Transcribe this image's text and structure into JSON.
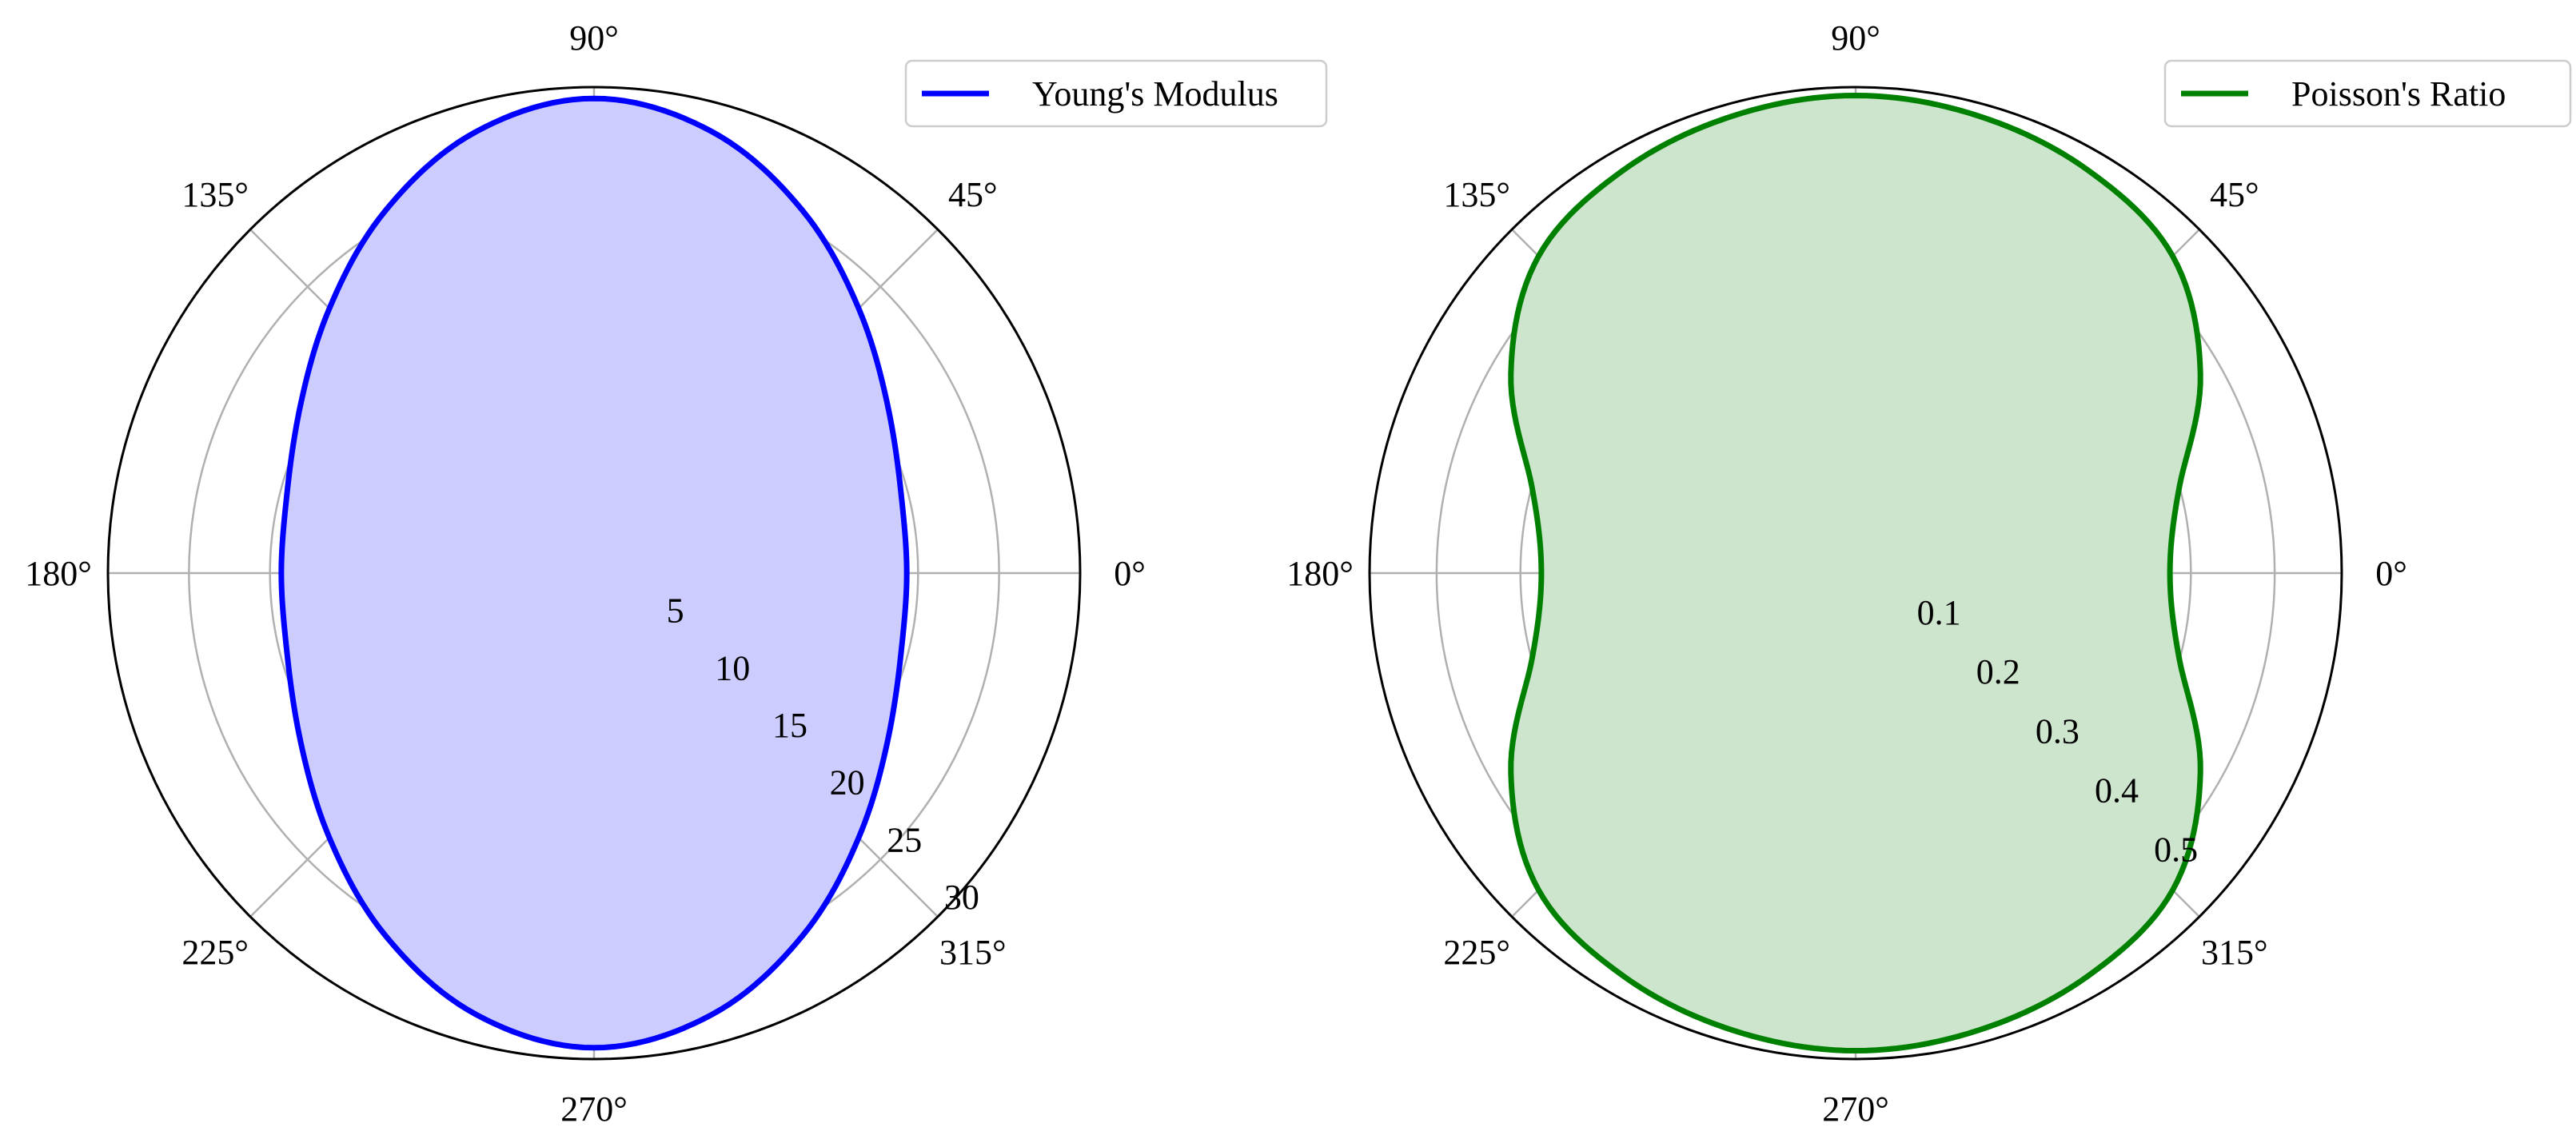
{
  "chart_data": [
    {
      "type": "polar-area",
      "angle_unit": "degrees",
      "angle_ticks": [
        "0°",
        "45°",
        "90°",
        "135°",
        "180°",
        "225°",
        "270°",
        "315°"
      ],
      "r_ticks": [
        "5",
        "10",
        "15",
        "20",
        "25",
        "30"
      ],
      "r_tick_values": [
        5,
        10,
        15,
        20,
        25,
        30
      ],
      "rlim": [
        0,
        30
      ],
      "grid": true,
      "legend_position": "top-right",
      "series": [
        {
          "name": "Young's Modulus",
          "color": "#0000ff",
          "fill_color": "#ccccff",
          "theta_deg": [
            0,
            15,
            30,
            45,
            60,
            75,
            90,
            105,
            120,
            135,
            150,
            165,
            180,
            195,
            210,
            225,
            240,
            255,
            270,
            285,
            300,
            315,
            330,
            345,
            360
          ],
          "r": [
            19.3,
            19.6,
            20.9,
            23.1,
            25.8,
            28.2,
            29.3,
            28.2,
            25.8,
            23.1,
            20.9,
            19.6,
            19.3,
            19.6,
            20.9,
            23.1,
            25.8,
            28.2,
            29.3,
            28.2,
            25.8,
            23.1,
            20.9,
            19.6,
            19.3
          ]
        }
      ]
    },
    {
      "type": "polar-area",
      "angle_unit": "degrees",
      "angle_ticks": [
        "0°",
        "45°",
        "90°",
        "135°",
        "180°",
        "225°",
        "270°",
        "315°"
      ],
      "r_ticks": [
        "0.1",
        "0.2",
        "0.3",
        "0.4",
        "0.5"
      ],
      "r_tick_values": [
        0.1,
        0.2,
        0.3,
        0.4,
        0.5
      ],
      "rlim": [
        0,
        0.58
      ],
      "grid": true,
      "legend_position": "top-right",
      "series": [
        {
          "name": "Poisson's Ratio",
          "color": "#008000",
          "fill_color": "#cce5cc",
          "theta_deg": [
            0,
            15,
            30,
            45,
            60,
            75,
            90,
            105,
            120,
            135,
            150,
            165,
            180,
            195,
            210,
            225,
            240,
            255,
            270,
            285,
            300,
            315,
            330,
            345,
            360
          ],
          "r": [
            0.375,
            0.4,
            0.475,
            0.535,
            0.555,
            0.565,
            0.57,
            0.565,
            0.555,
            0.535,
            0.475,
            0.4,
            0.375,
            0.4,
            0.475,
            0.535,
            0.555,
            0.565,
            0.57,
            0.565,
            0.555,
            0.535,
            0.475,
            0.4,
            0.375
          ]
        }
      ]
    }
  ]
}
